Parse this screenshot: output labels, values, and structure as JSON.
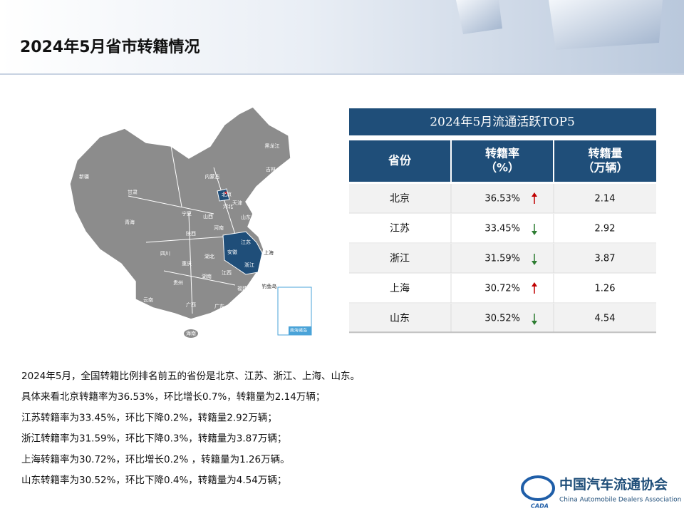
{
  "header": {
    "title": "2024年5月省市转籍情况"
  },
  "map": {
    "labels": [
      "新疆",
      "西藏",
      "青海",
      "甘肃",
      "内蒙古",
      "黑龙江",
      "吉林",
      "辽宁",
      "北京",
      "天津",
      "河北",
      "山西",
      "山东",
      "宁夏",
      "陕西",
      "河南",
      "江苏",
      "安徽",
      "上海",
      "浙江",
      "湖北",
      "四川",
      "重庆",
      "湖南",
      "江西",
      "贵州",
      "福建",
      "云南",
      "广西",
      "广东",
      "台湾",
      "香港",
      "澳门",
      "海南",
      "钓鱼岛",
      "南海诸岛"
    ]
  },
  "table": {
    "title": "2024年5月流通活跃TOP5",
    "headers": [
      "省份",
      "转籍率\n（%）",
      "转籍量\n（万辆）"
    ],
    "rows": [
      {
        "province": "北京",
        "rate": "36.53%",
        "trend": "up",
        "volume": "2.14"
      },
      {
        "province": "江苏",
        "rate": "33.45%",
        "trend": "down",
        "volume": "2.92"
      },
      {
        "province": "浙江",
        "rate": "31.59%",
        "trend": "down",
        "volume": "3.87"
      },
      {
        "province": "上海",
        "rate": "30.72%",
        "trend": "up",
        "volume": "1.26"
      },
      {
        "province": "山东",
        "rate": "30.52%",
        "trend": "down",
        "volume": "4.54"
      }
    ]
  },
  "text": [
    "2024年5月，全国转籍比例排名前五的省份是北京、江苏、浙江、上海、山东。",
    "具体来看北京转籍率为36.53%，环比增长0.7%，转籍量为2.14万辆；",
    "江苏转籍率为33.45%，环比下降0.2%，转籍量2.92万辆；",
    "浙江转籍率为31.59%，环比下降0.3%，转籍量为3.87万辆；",
    "上海转籍率为30.72%，环比增长0.2% ，转籍量为1.26万辆。",
    "山东转籍率为30.52%，环比下降0.4%，转籍量为4.54万辆；"
  ],
  "logo": {
    "name": "中国汽车流通协会",
    "english": "China Automobile Dealers Association",
    "abbr": "CADA"
  }
}
